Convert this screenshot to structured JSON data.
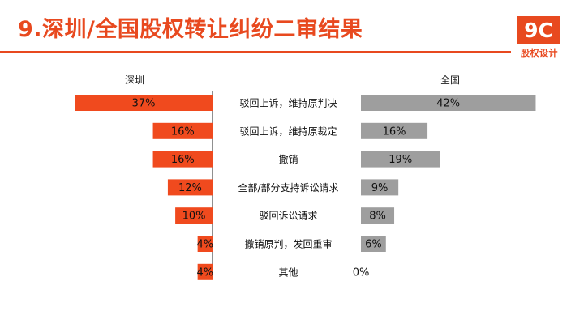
{
  "title": "9.深圳/全国股权转让纠纷二审结果",
  "logo": {
    "mark": "9C",
    "subtitle": "股权设计"
  },
  "colors": {
    "accent": "#e8491f",
    "left_bar": "#f04a1e",
    "right_bar": "#9e9e9e"
  },
  "chart_data": {
    "type": "bar",
    "orientation": "horizontal-butterfly",
    "categories": [
      "驳回上诉，维持原判决",
      "驳回上诉，维持原裁定",
      "撤销",
      "全部/部分支持诉讼请求",
      "驳回诉讼请求",
      "撤销原判，发回重审",
      "其他"
    ],
    "series": [
      {
        "name": "深圳",
        "values": [
          37,
          16,
          16,
          12,
          10,
          4,
          4
        ],
        "labels": [
          "37%",
          "16%",
          "16%",
          "12%",
          "10%",
          "4%",
          "4%"
        ]
      },
      {
        "name": "全国",
        "values": [
          42,
          16,
          19,
          9,
          8,
          6,
          0
        ],
        "labels": [
          "42%",
          "16%",
          "19%",
          "9%",
          "8%",
          "6%",
          "0%"
        ]
      }
    ],
    "unit": "%",
    "xlim": [
      0,
      42
    ],
    "grid": false,
    "legend": "series names above each side"
  }
}
